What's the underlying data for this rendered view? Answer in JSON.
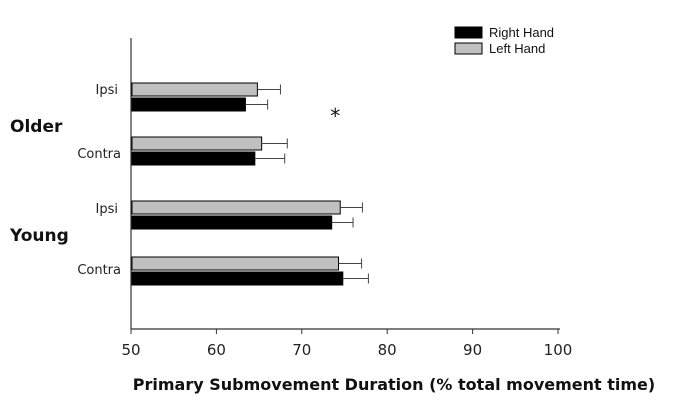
{
  "chart_data": {
    "type": "bar",
    "orientation": "horizontal",
    "xlabel": "Primary Submovement Duration (% total movement time)",
    "xlim": [
      50,
      100
    ],
    "xticks": [
      50,
      60,
      70,
      80,
      90,
      100
    ],
    "groups": [
      {
        "label": "Older",
        "categories": [
          "Ipsi",
          "Contra"
        ]
      },
      {
        "label": "Young",
        "categories": [
          "Ipsi",
          "Contra"
        ]
      }
    ],
    "categories": [
      "Older Ipsi",
      "Older Contra",
      "Young Ipsi",
      "Young Contra"
    ],
    "category_labels": [
      "Ipsi",
      "Contra",
      "Ipsi",
      "Contra"
    ],
    "series": [
      {
        "name": "Right Hand",
        "color": "#000000",
        "values": [
          63.4,
          64.5,
          73.5,
          74.8
        ],
        "errors": [
          2.6,
          3.5,
          2.5,
          3.0
        ]
      },
      {
        "name": "Left Hand",
        "color": "#c0c0c0",
        "values": [
          64.8,
          65.3,
          74.5,
          74.3
        ],
        "errors": [
          2.7,
          3.0,
          2.6,
          2.7
        ]
      }
    ],
    "legend": "top-right",
    "annotations": [
      {
        "text": "*",
        "x": 72.4,
        "category": "Older Ipsi"
      }
    ]
  }
}
